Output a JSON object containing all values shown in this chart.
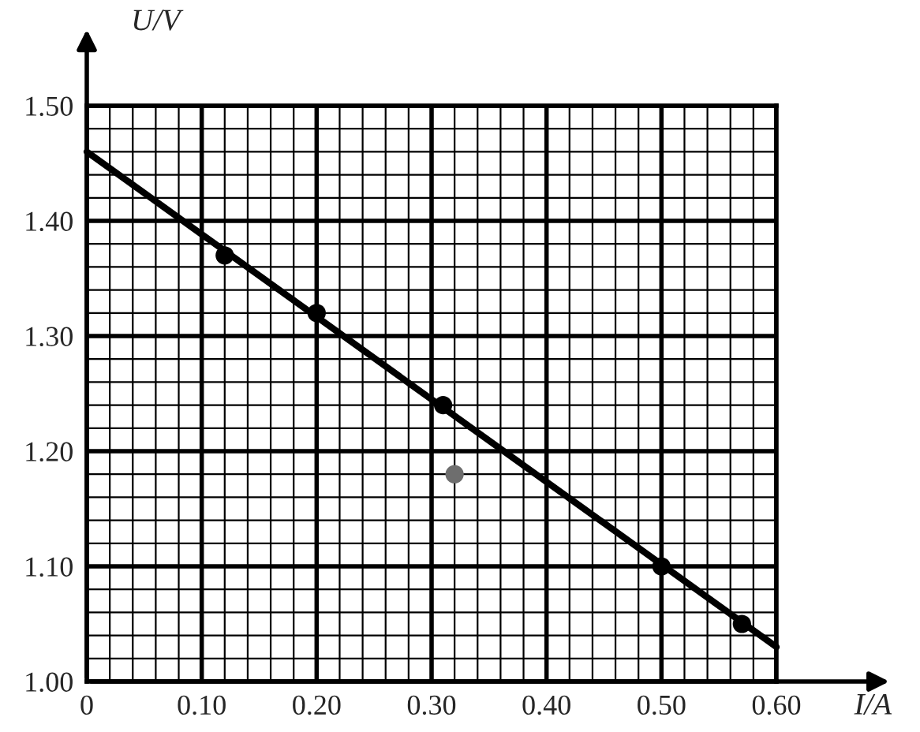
{
  "chart_data": {
    "type": "scatter",
    "xlabel": "I/A",
    "ylabel": "U/V",
    "xlim": [
      0,
      0.6
    ],
    "ylim": [
      1.0,
      1.5
    ],
    "xticks": [
      0,
      {
        "value": 0.1,
        "label": "0.10"
      },
      {
        "value": 0.2,
        "label": "0.20"
      },
      {
        "value": 0.3,
        "label": "0.30"
      },
      {
        "value": 0.4,
        "label": "0.40"
      },
      {
        "value": 0.5,
        "label": "0.50"
      },
      {
        "value": 0.6,
        "label": "0.60"
      }
    ],
    "yticks": [
      {
        "value": 1.0,
        "label": "1.00"
      },
      {
        "value": 1.1,
        "label": "1.10"
      },
      {
        "value": 1.2,
        "label": "1.20"
      },
      {
        "value": 1.3,
        "label": "1.30"
      },
      {
        "value": 1.4,
        "label": "1.40"
      },
      {
        "value": 1.5,
        "label": "1.50"
      }
    ],
    "grid": true,
    "series": [
      {
        "marker": "circle",
        "color": "#000000",
        "x": [
          0.12,
          0.2,
          0.31,
          0.5,
          0.57
        ],
        "values": [
          1.37,
          1.32,
          1.24,
          1.1,
          1.05
        ]
      },
      {
        "marker": "circle",
        "color": "#6e6e6e",
        "x": [
          0.32
        ],
        "values": [
          1.18
        ]
      },
      {
        "type": "line",
        "marker": "none",
        "color": "#000000",
        "x": [
          0,
          0.6
        ],
        "values": [
          1.46,
          1.03
        ]
      }
    ]
  }
}
